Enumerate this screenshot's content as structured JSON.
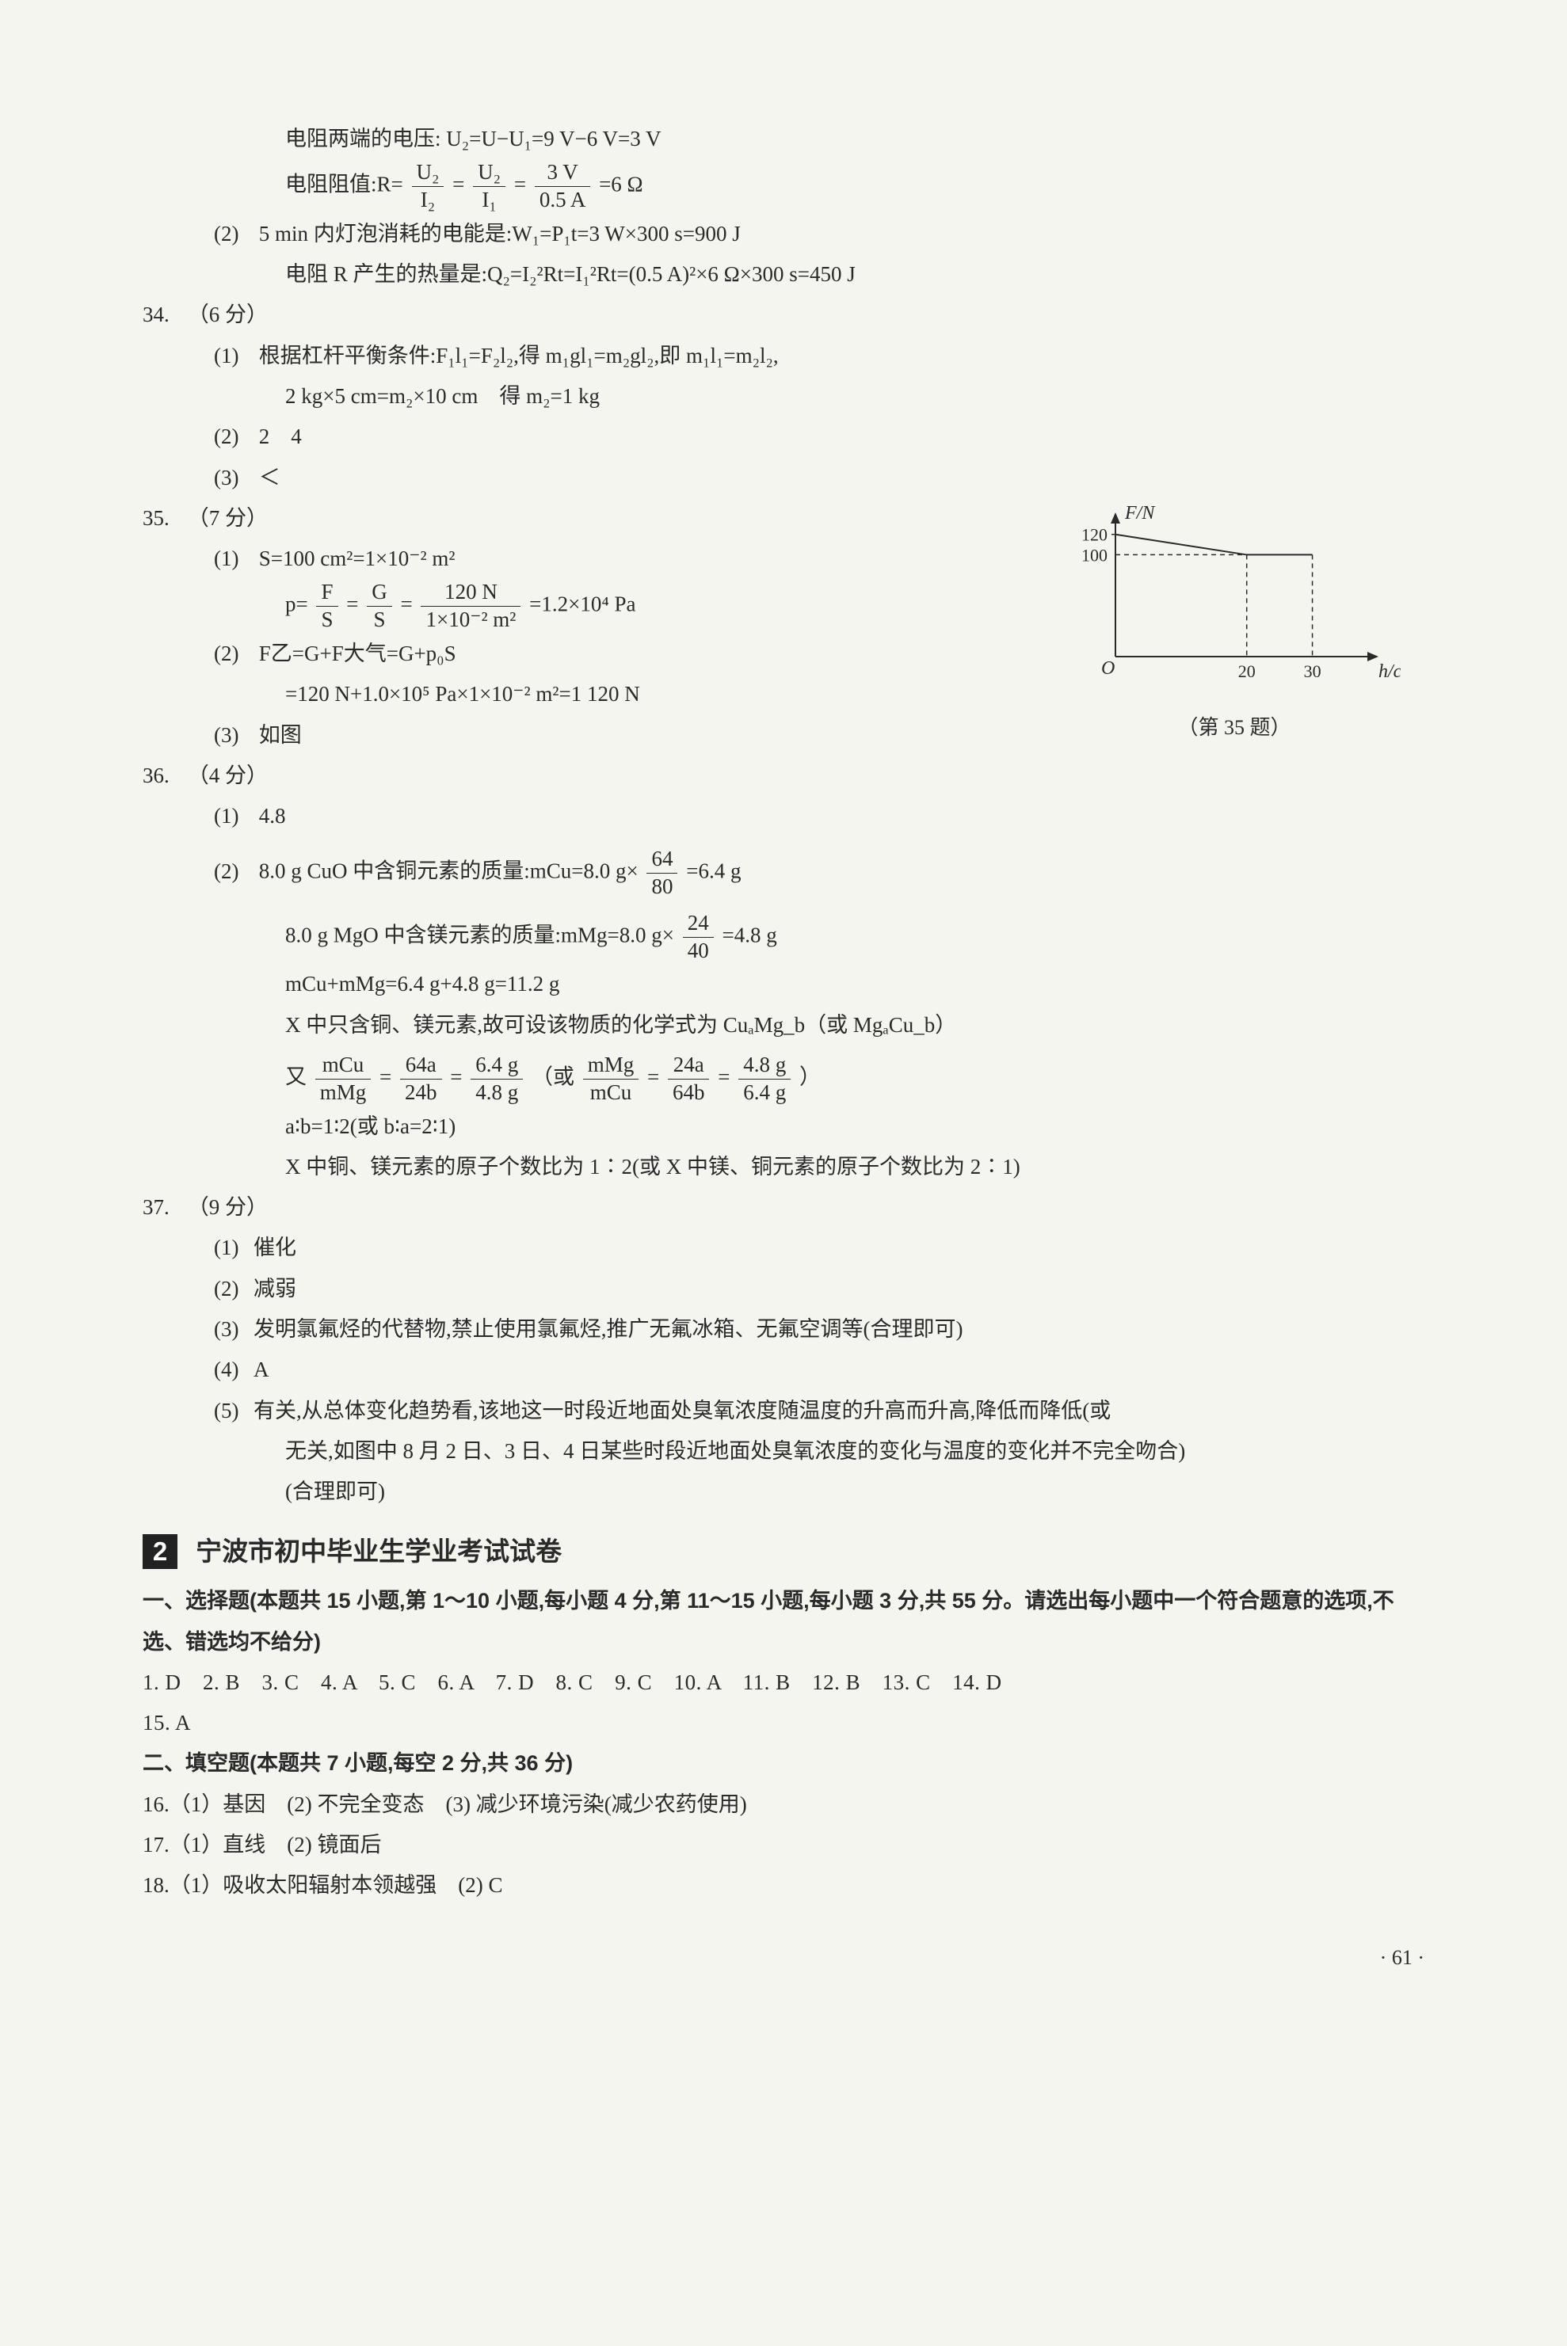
{
  "text_color": "#2a2a2a",
  "bg_color": "#f5f5f0",
  "top_lines": {
    "l1a": "电阻两端的电压:",
    "l1b": "U₂=U−U₁=9 V−6 V=3 V",
    "l2a": "电阻阻值:R=",
    "frac1_num": "U₂",
    "frac1_den": "I₂",
    "eq1": "=",
    "frac2_num": "U₂",
    "frac2_den": "I₁",
    "eq2": "=",
    "frac3_num": "3 V",
    "frac3_den": "0.5 A",
    "l2b": "=6 Ω",
    "l3_sub": "(2)",
    "l3": "5 min 内灯泡消耗的电能是:W₁=P₁t=3 W×300 s=900 J",
    "l4": "电阻 R 产生的热量是:Q₂=I₂²Rt=I₁²Rt=(0.5 A)²×6 Ω×300 s=450 J"
  },
  "q34": {
    "num": "34.",
    "score": "（6 分）",
    "s1_sub": "(1)",
    "s1a": "根据杠杆平衡条件:F₁l₁=F₂l₂,得 m₁gl₁=m₂gl₂,即 m₁l₁=m₂l₂,",
    "s1b": "2 kg×5 cm=m₂×10 cm　得 m₂=1 kg",
    "s2_sub": "(2)",
    "s2": "2　4",
    "s3_sub": "(3)",
    "s3": "＜"
  },
  "q35": {
    "num": "35.",
    "score": "（7 分）",
    "s1_sub": "(1)",
    "s1a": "S=100 cm²=1×10⁻² m²",
    "s1b_pre": "p=",
    "s1b_f1n": "F",
    "s1b_f1d": "S",
    "s1b_eq1": "=",
    "s1b_f2n": "G",
    "s1b_f2d": "S",
    "s1b_eq2": "=",
    "s1b_f3n": "120 N",
    "s1b_f3d": "1×10⁻² m²",
    "s1b_post": "=1.2×10⁴ Pa",
    "s2_sub": "(2)",
    "s2a": "F乙=G+F大气=G+p₀S",
    "s2b": "=120 N+1.0×10⁵ Pa×1×10⁻² m²=1 120 N",
    "s3_sub": "(3)",
    "s3": "如图"
  },
  "chart": {
    "y_label": "F/N",
    "x_label": "h/cm",
    "y_ticks": [
      "100",
      "120"
    ],
    "x_ticks": [
      "20",
      "30"
    ],
    "origin": "O",
    "caption": "（第 35 题）",
    "axis_color": "#2a2a2a",
    "line_color": "#2a2a2a",
    "dash_pattern": "6,5",
    "line_width": 2
  },
  "q36": {
    "num": "36.",
    "score": "（4 分）",
    "s1_sub": "(1)",
    "s1": "4.8",
    "s2_sub": "(2)",
    "s2a_pre": "8.0 g CuO 中含铜元素的质量:mCu=8.0 g×",
    "s2a_fn": "64",
    "s2a_fd": "80",
    "s2a_post": "=6.4 g",
    "s2b_pre": "8.0 g MgO 中含镁元素的质量:mMg=8.0 g×",
    "s2b_fn": "24",
    "s2b_fd": "40",
    "s2b_post": "=4.8 g",
    "s2c": "mCu+mMg=6.4 g+4.8 g=11.2 g",
    "s2d": "X 中只含铜、镁元素,故可设该物质的化学式为 CuₐMg_b（或 MgₐCu_b）",
    "s2e_pre": "又",
    "s2e_f1n": "mCu",
    "s2e_f1d": "mMg",
    "s2e_eq1": "=",
    "s2e_f2n": "64a",
    "s2e_f2d": "24b",
    "s2e_eq2": "=",
    "s2e_f3n": "6.4 g",
    "s2e_f3d": "4.8 g",
    "s2e_mid": "（或",
    "s2e_f4n": "mMg",
    "s2e_f4d": "mCu",
    "s2e_eq3": "=",
    "s2e_f5n": "24a",
    "s2e_f5d": "64b",
    "s2e_eq4": "=",
    "s2e_f6n": "4.8 g",
    "s2e_f6d": "6.4 g",
    "s2e_post": "）",
    "s2f": "a∶b=1∶2(或 b∶a=2∶1)",
    "s2g": "X 中铜、镁元素的原子个数比为 1∶2(或 X 中镁、铜元素的原子个数比为 2∶1)"
  },
  "q37": {
    "num": "37.",
    "score": "（9 分）",
    "s1_sub": "(1)",
    "s1": "催化",
    "s2_sub": "(2)",
    "s2": "减弱",
    "s3_sub": "(3)",
    "s3": "发明氯氟烃的代替物,禁止使用氯氟烃,推广无氟冰箱、无氟空调等(合理即可)",
    "s4_sub": "(4)",
    "s4": "A",
    "s5_sub": "(5)",
    "s5a": "有关,从总体变化趋势看,该地这一时段近地面处臭氧浓度随温度的升高而升高,降低而降低(或",
    "s5b": "无关,如图中 8 月 2 日、3 日、4 日某些时段近地面处臭氧浓度的变化与温度的变化并不完全吻合)",
    "s5c": "(合理即可)"
  },
  "section": {
    "box_num": "2",
    "title": "宁波市初中毕业生学业考试试卷",
    "part1_label": "一、选择题(本题共 15 小题,第 1～10 小题,每小题 4 分,第 11～15 小题,每小题 3 分,共 55 分。请选出每小题中一个符合题意的选项,不选、错选均不给分)",
    "answers1": "1. D　2. B　3. C　4. A　5. C　6. A　7. D　8. C　9. C　10. A　11. B　12. B　13. C　14. D",
    "answers1b": "15. A",
    "part2_label": "二、填空题(本题共 7 小题,每空 2 分,共 36 分)",
    "a16": "16.（1）基因　(2) 不完全变态　(3) 减少环境污染(减少农药使用)",
    "a17": "17.（1）直线　(2) 镜面后",
    "a18": "18.（1）吸收太阳辐射本领越强　(2) C"
  },
  "page_num": "· 61 ·"
}
